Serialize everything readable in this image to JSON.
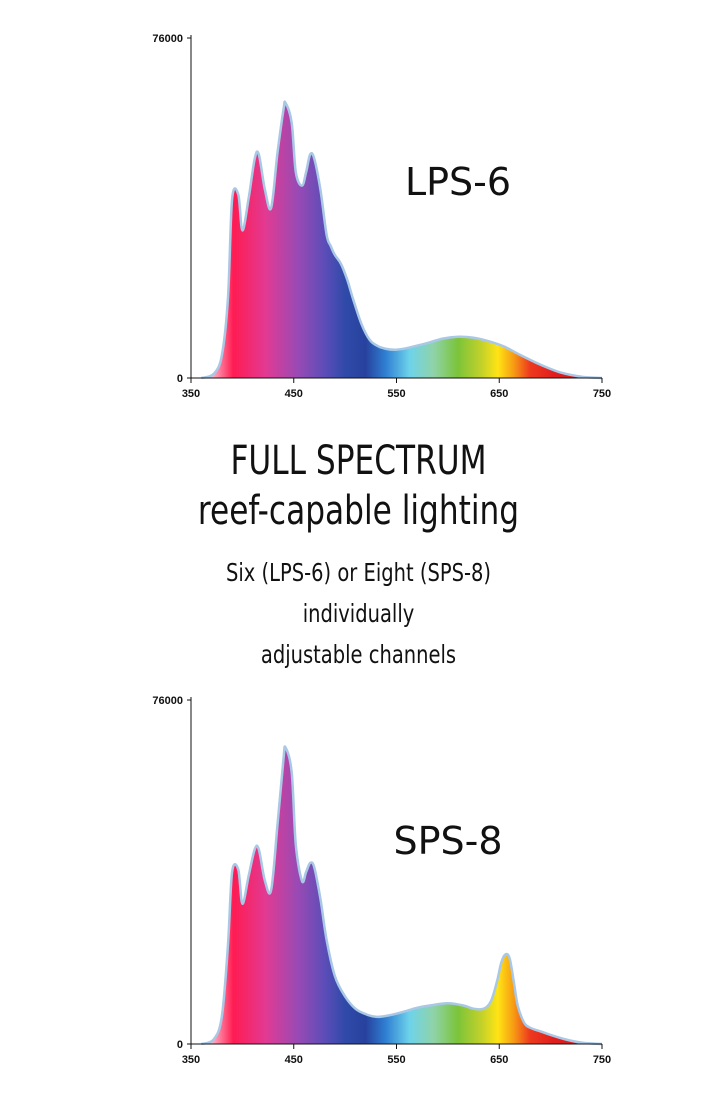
{
  "headline": {
    "line1": "FULL SPECTRUM",
    "line2": "reef-capable lighting",
    "sub1": "Six (LPS-6) or Eight (SPS-8)",
    "sub2": "individually",
    "sub3": "adjustable channels"
  },
  "chart_data": [
    {
      "type": "area",
      "title": "LPS-6",
      "xlabel": "",
      "ylabel": "",
      "xlim": [
        350,
        750
      ],
      "ylim": [
        0,
        76000
      ],
      "x_ticks": [
        "350",
        "450",
        "550",
        "650",
        "750"
      ],
      "y_ticks": [
        "0",
        "76000"
      ],
      "grid": false,
      "fill": "visible-spectrum gradient",
      "series": [
        {
          "x": [
            360,
            372,
            380,
            386,
            390,
            396,
            400,
            406,
            412,
            416,
            422,
            428,
            434,
            440,
            442,
            448,
            452,
            458,
            462,
            466,
            470,
            476,
            482,
            486,
            490,
            496,
            502,
            508,
            516,
            524,
            532,
            540,
            548,
            556,
            566,
            580,
            595,
            610,
            625,
            640,
            655,
            670,
            690,
            710,
            730,
            750
          ],
          "values": [
            0,
            900,
            5000,
            18000,
            40000,
            41000,
            33000,
            40000,
            49000,
            50000,
            42000,
            38000,
            50000,
            60000,
            61500,
            57000,
            46000,
            43000,
            46000,
            50000,
            49000,
            42000,
            32000,
            29500,
            27500,
            25500,
            22000,
            17500,
            12000,
            8500,
            7100,
            6500,
            6300,
            6500,
            7000,
            7800,
            8800,
            9200,
            9000,
            8200,
            7000,
            5200,
            3000,
            1200,
            300,
            0
          ]
        }
      ]
    },
    {
      "type": "area",
      "title": "SPS-8",
      "xlabel": "",
      "ylabel": "",
      "xlim": [
        350,
        750
      ],
      "ylim": [
        0,
        76000
      ],
      "x_ticks": [
        "350",
        "450",
        "550",
        "650",
        "750"
      ],
      "y_ticks": [
        "0",
        "76000"
      ],
      "grid": false,
      "fill": "visible-spectrum gradient",
      "series": [
        {
          "x": [
            360,
            372,
            380,
            386,
            390,
            396,
            400,
            406,
            412,
            416,
            422,
            428,
            434,
            440,
            442,
            448,
            452,
            458,
            462,
            466,
            470,
            476,
            482,
            490,
            500,
            510,
            520,
            530,
            540,
            555,
            570,
            585,
            600,
            615,
            625,
            635,
            642,
            648,
            652,
            656,
            660,
            664,
            668,
            674,
            680,
            690,
            700,
            715,
            730,
            750
          ],
          "values": [
            0,
            1000,
            6000,
            22000,
            38000,
            38500,
            31000,
            37000,
            43000,
            43000,
            36000,
            34000,
            48000,
            63000,
            65500,
            60000,
            44000,
            36000,
            38000,
            40000,
            39000,
            32000,
            23000,
            15000,
            10500,
            7800,
            6600,
            6000,
            6200,
            7000,
            8000,
            8600,
            9000,
            8500,
            7800,
            7800,
            9500,
            14000,
            18000,
            19800,
            19000,
            14000,
            8500,
            4800,
            3600,
            2800,
            2000,
            1000,
            300,
            0
          ]
        }
      ]
    }
  ]
}
